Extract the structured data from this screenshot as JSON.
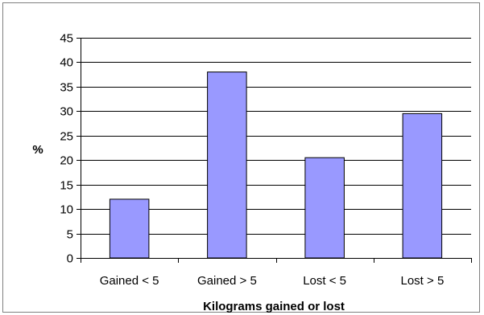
{
  "chart_data": {
    "type": "bar",
    "categories": [
      "Gained < 5",
      "Gained > 5",
      "Lost < 5",
      "Lost > 5"
    ],
    "values": [
      12,
      38,
      20.5,
      29.5
    ],
    "title": "",
    "xlabel": "Kilograms gained or lost",
    "ylabel": "%",
    "ylim": [
      0,
      45
    ],
    "yticks": [
      0,
      5,
      10,
      15,
      20,
      25,
      30,
      35,
      40,
      45
    ],
    "grid": true,
    "legend": "none",
    "colors": {
      "bar_fill": "#9999ff",
      "bar_stroke": "#000000",
      "gridline": "#000000",
      "axis": "#000000",
      "frame": "#7f7f7f"
    }
  }
}
